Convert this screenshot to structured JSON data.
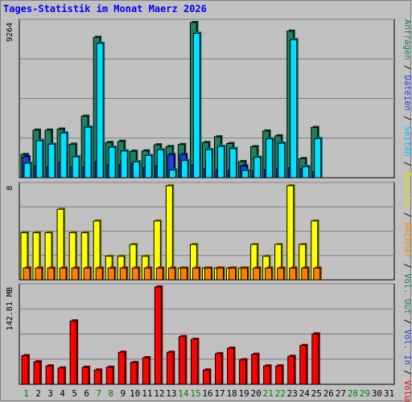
{
  "chart_data": {
    "type": "bar",
    "title": "Tages-Statistik im Monat Maerz 2026",
    "categories": [
      "1",
      "2",
      "3",
      "4",
      "5",
      "6",
      "7",
      "8",
      "9",
      "10",
      "11",
      "12",
      "13",
      "14",
      "15",
      "16",
      "17",
      "18",
      "19",
      "20",
      "21",
      "22",
      "23",
      "24",
      "25",
      "26",
      "27",
      "28",
      "29",
      "30",
      "31"
    ],
    "weekend_days": [
      "1",
      "7",
      "8",
      "14",
      "15",
      "21",
      "22",
      "28",
      "29"
    ],
    "panels": [
      {
        "name": "top",
        "axis_label": "9264",
        "ylim": [
          0,
          9264
        ],
        "grid": true,
        "series": [
          {
            "name": "Anfragen",
            "color": "#208060",
            "values": [
              1380,
              2840,
              2840,
              2900,
              2000,
              3670,
              8380,
              2100,
              2170,
              1580,
              1600,
              1960,
              1860,
              1980,
              9264,
              2100,
              2440,
              2040,
              960,
              1850,
              2790,
              2500,
              8750,
              1140,
              3000,
              0,
              0,
              0,
              0,
              0,
              0
            ]
          },
          {
            "name": "Dateien",
            "color": "#2040e0",
            "values": [
              1250,
              720,
              650,
              900,
              650,
              650,
              970,
              780,
              800,
              850,
              600,
              700,
              1380,
              1380,
              770,
              520,
              480,
              450,
              700,
              400,
              470,
              550,
              600,
              550,
              350,
              0,
              0,
              0,
              0,
              0,
              0
            ]
          },
          {
            "name": "Seiten",
            "color": "#00e0ff",
            "values": [
              870,
              2210,
              2000,
              2670,
              1250,
              3020,
              8020,
              1820,
              1600,
              950,
              1330,
              1670,
              460,
              1020,
              8620,
              1680,
              1870,
              1740,
              430,
              1220,
              2320,
              2060,
              8240,
              660,
              2340,
              0,
              0,
              0,
              0,
              0,
              0
            ]
          }
        ]
      },
      {
        "name": "middle",
        "axis_label": "8",
        "ylim": [
          0,
          8
        ],
        "grid": true,
        "series": [
          {
            "name": "Besuche",
            "color": "#ffff00",
            "values": [
              4,
              4,
              4,
              6,
              4,
              4,
              5,
              2,
              2,
              3,
              2,
              5,
              8,
              1,
              3,
              1,
              1,
              1,
              1,
              3,
              2,
              3,
              8,
              3,
              5,
              0,
              0,
              0,
              0,
              0,
              0
            ]
          },
          {
            "name": "Rechner",
            "color": "#ff8000",
            "values": [
              1,
              1,
              1,
              1,
              1,
              1,
              1,
              1,
              1,
              1,
              1,
              1,
              1,
              1,
              1,
              1,
              1,
              1,
              1,
              1,
              1,
              1,
              1,
              1,
              1,
              0,
              0,
              0,
              0,
              0,
              0
            ]
          }
        ]
      },
      {
        "name": "bottom",
        "axis_label": "142.81 MB",
        "ylim": [
          0,
          142.81
        ],
        "grid": true,
        "series": [
          {
            "name": "Volumen",
            "color": "#ff0000",
            "values": [
              42,
              33,
              27,
              24,
              93,
              25,
              21,
              25,
              47,
              32,
              39,
              142.81,
              47,
              70,
              66,
              21,
              45,
              53,
              36,
              44,
              27,
              27,
              41,
              57,
              74,
              0,
              0,
              0,
              0,
              0,
              0
            ]
          }
        ]
      }
    ],
    "right_legend": [
      {
        "text": "Anfragen",
        "color": "#208060"
      },
      {
        "text": "Dateien",
        "color": "#2040e0"
      },
      {
        "text": "Seiten",
        "color": "#00c0ff"
      },
      {
        "text": "Besuche",
        "color": "#e0e000"
      },
      {
        "text": "Rechner",
        "color": "#ff8000"
      },
      {
        "text": "Vol. Out",
        "color": "#208060"
      },
      {
        "text": "Vol. In",
        "color": "#2040e0"
      },
      {
        "text": "Volumen",
        "color": "#ff0000"
      }
    ],
    "right_legend_separator": " / "
  }
}
